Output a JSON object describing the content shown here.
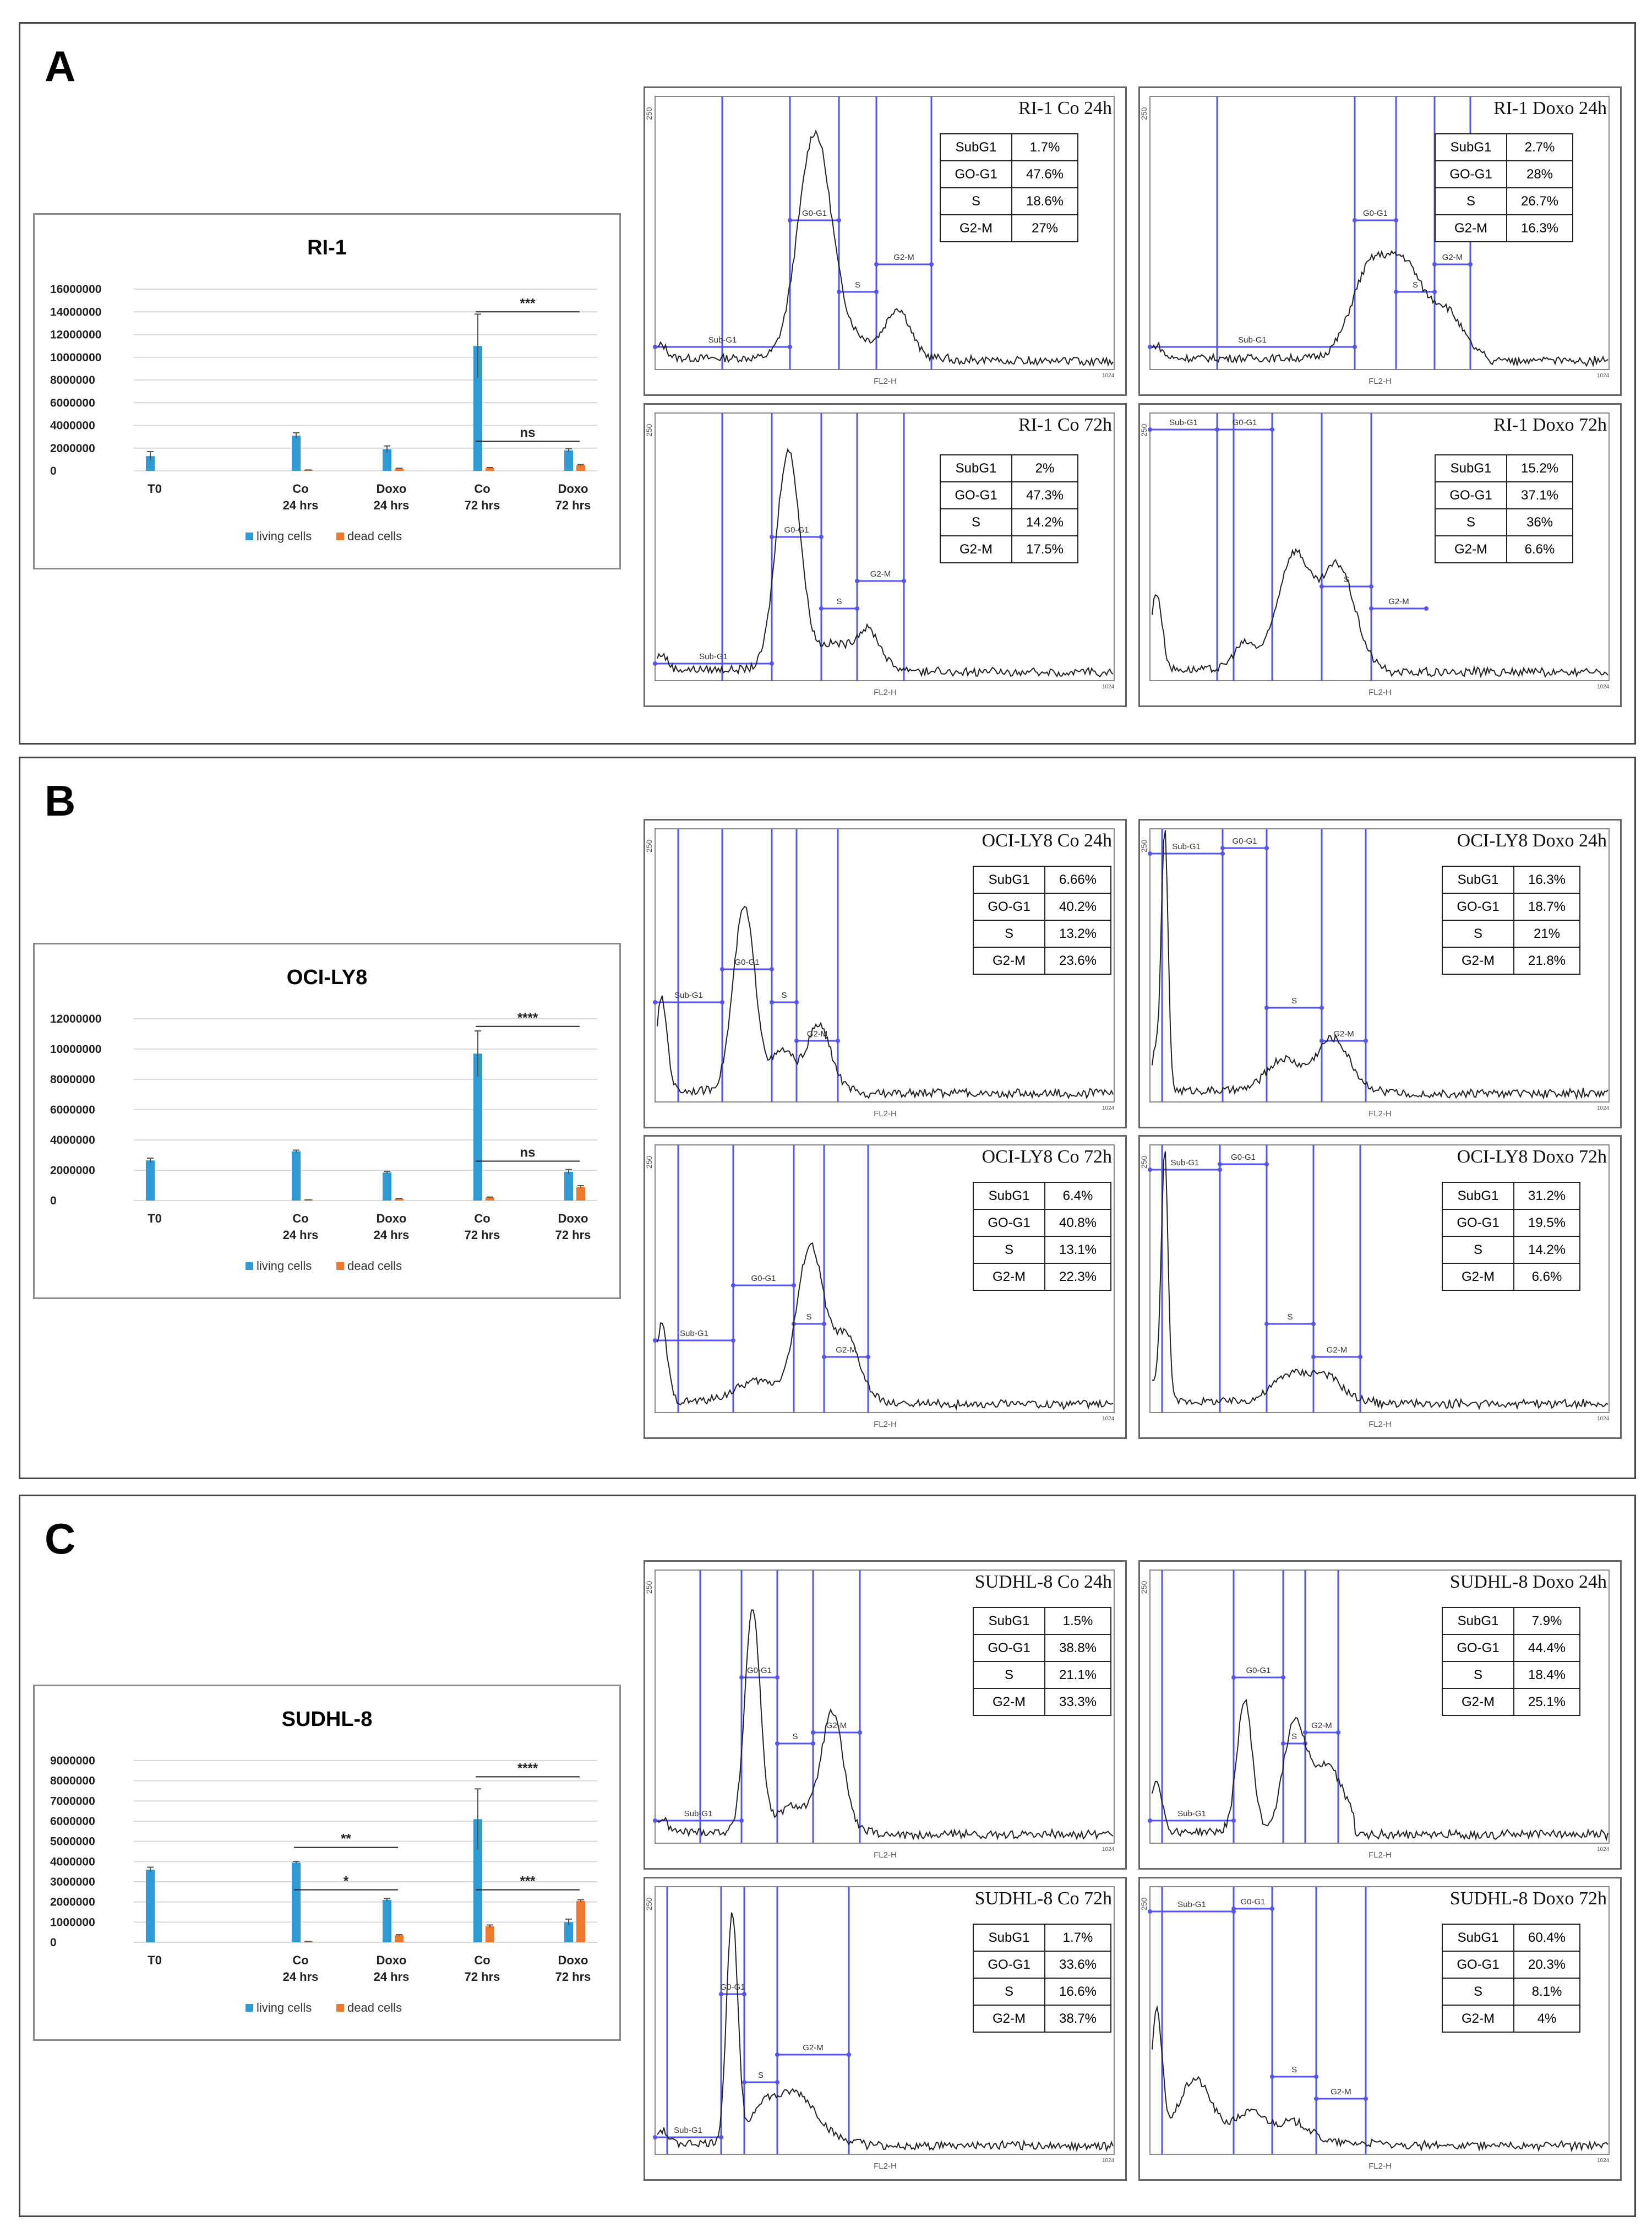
{
  "panels": [
    {
      "letter": "A",
      "chart": {
        "title": "RI-1",
        "ticks": [
          "16000000",
          "14000000",
          "12000000",
          "10000000",
          "8000000",
          "6000000",
          "4000000",
          "2000000",
          "0"
        ],
        "legend": [
          "living cells",
          "dead cells"
        ],
        "sig": [
          "***",
          "ns"
        ]
      },
      "flows": [
        {
          "title": "RI-1 Co 24h",
          "rows": [
            [
              "SubG1",
              "1.7%"
            ],
            [
              "GO-G1",
              "47.6%"
            ],
            [
              "S",
              "18.6%"
            ],
            [
              "G2-M",
              "27%"
            ]
          ]
        },
        {
          "title": "RI-1 Doxo 24h",
          "rows": [
            [
              "SubG1",
              "2.7%"
            ],
            [
              "GO-G1",
              "28%"
            ],
            [
              "S",
              "26.7%"
            ],
            [
              "G2-M",
              "16.3%"
            ]
          ]
        },
        {
          "title": "RI-1 Co 72h",
          "rows": [
            [
              "SubG1",
              "2%"
            ],
            [
              "GO-G1",
              "47.3%"
            ],
            [
              "S",
              "14.2%"
            ],
            [
              "G2-M",
              "17.5%"
            ]
          ]
        },
        {
          "title": "RI-1 Doxo 72h",
          "rows": [
            [
              "SubG1",
              "15.2%"
            ],
            [
              "GO-G1",
              "37.1%"
            ],
            [
              "S",
              "36%"
            ],
            [
              "G2-M",
              "6.6%"
            ]
          ]
        }
      ]
    },
    {
      "letter": "B",
      "chart": {
        "title": "OCI-LY8",
        "ticks": [
          "12000000",
          "10000000",
          "8000000",
          "6000000",
          "4000000",
          "2000000",
          "0"
        ],
        "legend": [
          "living cells",
          "dead cells"
        ],
        "sig": [
          "****",
          "ns"
        ]
      },
      "flows": [
        {
          "title": "OCI-LY8 Co 24h",
          "rows": [
            [
              "SubG1",
              "6.66%"
            ],
            [
              "GO-G1",
              "40.2%"
            ],
            [
              "S",
              "13.2%"
            ],
            [
              "G2-M",
              "23.6%"
            ]
          ]
        },
        {
          "title": "OCI-LY8 Doxo 24h",
          "rows": [
            [
              "SubG1",
              "16.3%"
            ],
            [
              "GO-G1",
              "18.7%"
            ],
            [
              "S",
              "21%"
            ],
            [
              "G2-M",
              "21.8%"
            ]
          ]
        },
        {
          "title": "OCI-LY8 Co 72h",
          "rows": [
            [
              "SubG1",
              "6.4%"
            ],
            [
              "GO-G1",
              "40.8%"
            ],
            [
              "S",
              "13.1%"
            ],
            [
              "G2-M",
              "22.3%"
            ]
          ]
        },
        {
          "title": "OCI-LY8 Doxo 72h",
          "rows": [
            [
              "SubG1",
              "31.2%"
            ],
            [
              "GO-G1",
              "19.5%"
            ],
            [
              "S",
              "14.2%"
            ],
            [
              "G2-M",
              "6.6%"
            ]
          ]
        }
      ]
    },
    {
      "letter": "C",
      "chart": {
        "title": "SUDHL-8",
        "ticks": [
          "9000000",
          "8000000",
          "7000000",
          "6000000",
          "5000000",
          "4000000",
          "3000000",
          "2000000",
          "1000000",
          "0"
        ],
        "legend": [
          "living cells",
          "dead cells"
        ],
        "sig": [
          "**",
          "*",
          "****",
          "***"
        ]
      },
      "flows": [
        {
          "title": "SUDHL-8 Co 24h",
          "rows": [
            [
              "SubG1",
              "1.5%"
            ],
            [
              "GO-G1",
              "38.8%"
            ],
            [
              "S",
              "21.1%"
            ],
            [
              "G2-M",
              "33.3%"
            ]
          ]
        },
        {
          "title": "SUDHL-8 Doxo 24h",
          "rows": [
            [
              "SubG1",
              "7.9%"
            ],
            [
              "GO-G1",
              "44.4%"
            ],
            [
              "S",
              "18.4%"
            ],
            [
              "G2-M",
              "25.1%"
            ]
          ]
        },
        {
          "title": "SUDHL-8 Co 72h",
          "rows": [
            [
              "SubG1",
              "1.7%"
            ],
            [
              "GO-G1",
              "33.6%"
            ],
            [
              "S",
              "16.6%"
            ],
            [
              "G2-M",
              "38.7%"
            ]
          ]
        },
        {
          "title": "SUDHL-8 Doxo 72h",
          "rows": [
            [
              "SubG1",
              "60.4%"
            ],
            [
              "GO-G1",
              "20.3%"
            ],
            [
              "S",
              "8.1%"
            ],
            [
              "G2-M",
              "4%"
            ]
          ]
        }
      ]
    }
  ],
  "flow_axis": {
    "y_tick": "250",
    "x_label": "FL2-H",
    "x_end": "1024"
  },
  "gate_labels": [
    "Sub-G1",
    "G0-G1",
    "S",
    "G2-M"
  ],
  "colors": {
    "living": "#2e9bd6",
    "dead": "#f0782d",
    "gate": "#5555ee",
    "frame": "#444444"
  },
  "chart_data": [
    {
      "type": "bar",
      "title": "RI-1",
      "categories": [
        "T0",
        "Co\n24 hrs",
        "Doxo\n24 hrs",
        "Co\n72 hrs",
        "Doxo\n72 hrs"
      ],
      "ylim": [
        0,
        16000000
      ],
      "series": [
        {
          "name": "living cells",
          "values": [
            1300000,
            3100000,
            1900000,
            11000000,
            1800000
          ],
          "errors": [
            400000,
            250000,
            300000,
            2800000,
            150000
          ]
        },
        {
          "name": "dead cells",
          "values": [
            null,
            60000,
            200000,
            250000,
            500000
          ],
          "errors": [
            null,
            20000,
            30000,
            40000,
            50000
          ]
        }
      ],
      "significance": [
        {
          "label": "***",
          "from": "Co\n72 hrs",
          "to": "Doxo\n72 hrs",
          "y": 14000000
        },
        {
          "label": "ns",
          "from": "Co\n72 hrs",
          "to": "Doxo\n72 hrs",
          "y": 2600000
        }
      ]
    },
    {
      "type": "bar",
      "title": "OCI-LY8",
      "categories": [
        "T0",
        "Co\n24 hrs",
        "Doxo\n24 hrs",
        "Co\n72 hrs",
        "Doxo\n72 hrs"
      ],
      "ylim": [
        0,
        12000000
      ],
      "series": [
        {
          "name": "living cells",
          "values": [
            2650000,
            3250000,
            1850000,
            9700000,
            1900000
          ],
          "errors": [
            150000,
            80000,
            80000,
            1500000,
            150000
          ]
        },
        {
          "name": "dead cells",
          "values": [
            null,
            40000,
            120000,
            200000,
            900000
          ],
          "errors": [
            null,
            10000,
            20000,
            30000,
            80000
          ]
        }
      ],
      "significance": [
        {
          "label": "****",
          "from": "Co\n72 hrs",
          "to": "Doxo\n72 hrs",
          "y": 11500000
        },
        {
          "label": "ns",
          "from": "Co\n72 hrs",
          "to": "Doxo\n72 hrs",
          "y": 2600000
        }
      ]
    },
    {
      "type": "bar",
      "title": "SUDHL-8",
      "categories": [
        "T0",
        "Co\n24 hrs",
        "Doxo\n24 hrs",
        "Co\n72 hrs",
        "Doxo\n72 hrs"
      ],
      "ylim": [
        0,
        9000000
      ],
      "series": [
        {
          "name": "living cells",
          "values": [
            3600000,
            3950000,
            2100000,
            6100000,
            1000000
          ],
          "errors": [
            120000,
            60000,
            70000,
            1500000,
            150000
          ]
        },
        {
          "name": "dead cells",
          "values": [
            null,
            30000,
            350000,
            800000,
            2050000
          ],
          "errors": [
            null,
            10000,
            30000,
            60000,
            60000
          ]
        }
      ],
      "significance": [
        {
          "label": "**",
          "from": "Co\n24 hrs",
          "to": "Doxo\n24 hrs",
          "y": 4700000
        },
        {
          "label": "*",
          "from": "Co\n24 hrs",
          "to": "Doxo\n24 hrs",
          "y": 2600000
        },
        {
          "label": "****",
          "from": "Co\n72 hrs",
          "to": "Doxo\n72 hrs",
          "y": 8200000
        },
        {
          "label": "***",
          "from": "Co\n72 hrs",
          "to": "Doxo\n72 hrs",
          "y": 2600000
        }
      ]
    }
  ]
}
